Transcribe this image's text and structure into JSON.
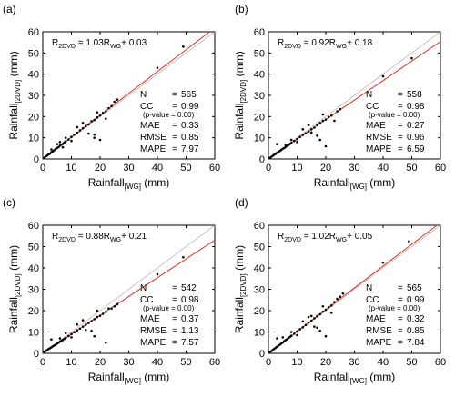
{
  "chart_data": [
    {
      "type": "scatter",
      "panel_label": "(a)",
      "equation": {
        "lhs": "R",
        "lhs_sub": "2DVD",
        "eq": " = 1.03R",
        "rhs_sub": "WG",
        "tail": "+ 0.03"
      },
      "fit": {
        "slope": 1.03,
        "intercept": 0.03
      },
      "stats": [
        {
          "label": "N",
          "value": "565"
        },
        {
          "label": "CC",
          "value": "0.99"
        },
        {
          "label": "",
          "value": "(p-value = 0.00)"
        },
        {
          "label": "MAE",
          "value": "0.33"
        },
        {
          "label": "RMSE",
          "value": "0.85"
        },
        {
          "label": "MAPE",
          "value": "7.97"
        }
      ],
      "xlabel": {
        "main": "Rainfall",
        "sub": "[WG]",
        "unit": " (mm)"
      },
      "ylabel": {
        "main": "Rainfall",
        "sub": "[2DVD]",
        "unit": " (mm)"
      },
      "xlim": [
        0,
        60
      ],
      "ylim": [
        0,
        60
      ],
      "xticks": [
        "0",
        "10",
        "20",
        "30",
        "40",
        "50",
        "60"
      ],
      "yticks": [
        "0",
        "10",
        "20",
        "30",
        "40",
        "50",
        "60"
      ],
      "points": [
        [
          0.5,
          0.5
        ],
        [
          1,
          1.1
        ],
        [
          1.5,
          1.6
        ],
        [
          2,
          2.1
        ],
        [
          2.5,
          2.5
        ],
        [
          3,
          3.2
        ],
        [
          3.5,
          3.6
        ],
        [
          4,
          4.1
        ],
        [
          4.5,
          4.7
        ],
        [
          5,
          5.2
        ],
        [
          5.5,
          5.6
        ],
        [
          6,
          6.3
        ],
        [
          6.5,
          6.7
        ],
        [
          7,
          7.1
        ],
        [
          7.5,
          7.8
        ],
        [
          8,
          8.3
        ],
        [
          9,
          9.2
        ],
        [
          10,
          10.4
        ],
        [
          11,
          11.5
        ],
        [
          12,
          12.3
        ],
        [
          13,
          13.5
        ],
        [
          14,
          14.5
        ],
        [
          15,
          15.6
        ],
        [
          16,
          16.3
        ],
        [
          17,
          17.8
        ],
        [
          18,
          18.4
        ],
        [
          19,
          19.6
        ],
        [
          20,
          20.5
        ],
        [
          21,
          21.8
        ],
        [
          22,
          22.5
        ],
        [
          23,
          24
        ],
        [
          24,
          25
        ],
        [
          25,
          27
        ],
        [
          26,
          28
        ],
        [
          18,
          10
        ],
        [
          18,
          11.5
        ],
        [
          20,
          9
        ],
        [
          16,
          12
        ],
        [
          40,
          43
        ],
        [
          49,
          53
        ],
        [
          3,
          4.5
        ],
        [
          5,
          7
        ],
        [
          8,
          10
        ],
        [
          12,
          15
        ],
        [
          14,
          17
        ],
        [
          22,
          19
        ],
        [
          19,
          22
        ],
        [
          10,
          8.5
        ],
        [
          7,
          5.5
        ],
        [
          6,
          8
        ]
      ],
      "colors": {
        "points": "#000000",
        "fit_line": "#e03020",
        "ref_line": "#b8b8b8"
      }
    },
    {
      "type": "scatter",
      "panel_label": "(b)",
      "equation": {
        "lhs": "R",
        "lhs_sub": "2DVD",
        "eq": " = 0.92R",
        "rhs_sub": "WG",
        "tail": "+ 0.18"
      },
      "fit": {
        "slope": 0.92,
        "intercept": 0.18
      },
      "stats": [
        {
          "label": "N",
          "value": "558"
        },
        {
          "label": "CC",
          "value": "0.98"
        },
        {
          "label": "",
          "value": "(p-value = 0.00)"
        },
        {
          "label": "MAE",
          "value": "0.27"
        },
        {
          "label": "RMSE",
          "value": "0.96"
        },
        {
          "label": "MAPE",
          "value": "6.59"
        }
      ],
      "xlabel": {
        "main": "Rainfall",
        "sub": "[WG]",
        "unit": " (mm)"
      },
      "ylabel": {
        "main": "Rainfall",
        "sub": "[2DVD]",
        "unit": " (mm)"
      },
      "xlim": [
        0,
        60
      ],
      "ylim": [
        0,
        60
      ],
      "xticks": [
        "0",
        "10",
        "20",
        "30",
        "40",
        "50",
        "60"
      ],
      "yticks": [
        "0",
        "10",
        "20",
        "30",
        "40",
        "50",
        "60"
      ],
      "points": [
        [
          0.5,
          0.5
        ],
        [
          1,
          1
        ],
        [
          1.5,
          1.5
        ],
        [
          2,
          2
        ],
        [
          2.5,
          2.4
        ],
        [
          3,
          2.9
        ],
        [
          3.5,
          3.4
        ],
        [
          4,
          3.8
        ],
        [
          4.5,
          4.3
        ],
        [
          5,
          4.8
        ],
        [
          5.5,
          5.2
        ],
        [
          6,
          5.7
        ],
        [
          6.5,
          6.2
        ],
        [
          7,
          6.6
        ],
        [
          7.5,
          7.1
        ],
        [
          8,
          7.6
        ],
        [
          9,
          8.5
        ],
        [
          10,
          9.4
        ],
        [
          11,
          10.4
        ],
        [
          12,
          11.3
        ],
        [
          13,
          12.1
        ],
        [
          14,
          13
        ],
        [
          15,
          14
        ],
        [
          16,
          14.8
        ],
        [
          17,
          16
        ],
        [
          18,
          17
        ],
        [
          19,
          18
        ],
        [
          20,
          18.6
        ],
        [
          21,
          19.8
        ],
        [
          22,
          20.5
        ],
        [
          24,
          22.5
        ],
        [
          25,
          23.5
        ],
        [
          18,
          9
        ],
        [
          20,
          6
        ],
        [
          17,
          11
        ],
        [
          15,
          12.5
        ],
        [
          40,
          39
        ],
        [
          50,
          47.5
        ],
        [
          3,
          7
        ],
        [
          12,
          14
        ],
        [
          14,
          16
        ],
        [
          19,
          21
        ],
        [
          10,
          8
        ],
        [
          6,
          6.5
        ],
        [
          8,
          9
        ],
        [
          23,
          18
        ]
      ],
      "colors": {
        "points": "#000000",
        "fit_line": "#e03020",
        "ref_line": "#b8b8b8"
      }
    },
    {
      "type": "scatter",
      "panel_label": "(c)",
      "equation": {
        "lhs": "R",
        "lhs_sub": "2DVD",
        "eq": " = 0.88R",
        "rhs_sub": "WG",
        "tail": "+ 0.21"
      },
      "fit": {
        "slope": 0.88,
        "intercept": 0.21
      },
      "stats": [
        {
          "label": "N",
          "value": "542"
        },
        {
          "label": "CC",
          "value": "0.98"
        },
        {
          "label": "",
          "value": "(p-value = 0.00)"
        },
        {
          "label": "MAE",
          "value": "0.37"
        },
        {
          "label": "RMSE",
          "value": "1.13"
        },
        {
          "label": "MAPE",
          "value": "7.57"
        }
      ],
      "xlabel": {
        "main": "Rainfall",
        "sub": "[WG]",
        "unit": " (mm)"
      },
      "ylabel": {
        "main": "Rainfall",
        "sub": "[2DVD]",
        "unit": " (mm)"
      },
      "xlim": [
        0,
        60
      ],
      "ylim": [
        0,
        60
      ],
      "xticks": [
        "0",
        "10",
        "20",
        "30",
        "40",
        "50",
        "60"
      ],
      "yticks": [
        "0",
        "10",
        "20",
        "30",
        "40",
        "50",
        "60"
      ],
      "points": [
        [
          0.5,
          0.6
        ],
        [
          1,
          1.1
        ],
        [
          1.5,
          1.5
        ],
        [
          2,
          2
        ],
        [
          2.5,
          2.4
        ],
        [
          3,
          2.8
        ],
        [
          3.5,
          3.3
        ],
        [
          4,
          3.7
        ],
        [
          4.5,
          4.1
        ],
        [
          5,
          4.6
        ],
        [
          5.5,
          5
        ],
        [
          6,
          5.5
        ],
        [
          6.5,
          5.9
        ],
        [
          7,
          6.3
        ],
        [
          7.5,
          6.8
        ],
        [
          8,
          7.2
        ],
        [
          9,
          8.1
        ],
        [
          10,
          9
        ],
        [
          11,
          9.9
        ],
        [
          12,
          10.8
        ],
        [
          13,
          11.6
        ],
        [
          14,
          12.5
        ],
        [
          15,
          13.4
        ],
        [
          16,
          14.2
        ],
        [
          17,
          15.1
        ],
        [
          18,
          16
        ],
        [
          19,
          17
        ],
        [
          20,
          17.6
        ],
        [
          21,
          18.5
        ],
        [
          22,
          19.4
        ],
        [
          24,
          21
        ],
        [
          25,
          22
        ],
        [
          26,
          23
        ],
        [
          18,
          8
        ],
        [
          22,
          5
        ],
        [
          17,
          10.5
        ],
        [
          15,
          11
        ],
        [
          40,
          37
        ],
        [
          49,
          45
        ],
        [
          3,
          6.5
        ],
        [
          12,
          13.5
        ],
        [
          14,
          15.5
        ],
        [
          19,
          20
        ],
        [
          10,
          7.5
        ],
        [
          6,
          7
        ],
        [
          8,
          9.5
        ],
        [
          23,
          21
        ]
      ],
      "colors": {
        "points": "#000000",
        "fit_line": "#e03020",
        "ref_line": "#b8b8b8"
      }
    },
    {
      "type": "scatter",
      "panel_label": "(d)",
      "equation": {
        "lhs": "R",
        "lhs_sub": "2DVD",
        "eq": " = 1.02R",
        "rhs_sub": "WG",
        "tail": "+ 0.05"
      },
      "fit": {
        "slope": 1.02,
        "intercept": 0.05
      },
      "stats": [
        {
          "label": "N",
          "value": "565"
        },
        {
          "label": "CC",
          "value": "0.99"
        },
        {
          "label": "",
          "value": "(p-value = 0.00)"
        },
        {
          "label": "MAE",
          "value": "0.32"
        },
        {
          "label": "RMSE",
          "value": "0.85"
        },
        {
          "label": "MAPE",
          "value": "7.84"
        }
      ],
      "xlabel": {
        "main": "Rainfall",
        "sub": "[WG]",
        "unit": " (mm)"
      },
      "ylabel": {
        "main": "Rainfall",
        "sub": "[2DVD]",
        "unit": " (mm)"
      },
      "xlim": [
        0,
        60
      ],
      "ylim": [
        0,
        60
      ],
      "xticks": [
        "0",
        "10",
        "20",
        "30",
        "40",
        "50",
        "60"
      ],
      "yticks": [
        "0",
        "10",
        "20",
        "30",
        "40",
        "50",
        "60"
      ],
      "points": [
        [
          0.5,
          0.5
        ],
        [
          1,
          1
        ],
        [
          1.5,
          1.6
        ],
        [
          2,
          2.1
        ],
        [
          2.5,
          2.6
        ],
        [
          3,
          3.1
        ],
        [
          3.5,
          3.6
        ],
        [
          4,
          4.1
        ],
        [
          4.5,
          4.6
        ],
        [
          5,
          5.1
        ],
        [
          5.5,
          5.7
        ],
        [
          6,
          6.2
        ],
        [
          6.5,
          6.6
        ],
        [
          7,
          7.2
        ],
        [
          7.5,
          7.7
        ],
        [
          8,
          8.2
        ],
        [
          9,
          9.2
        ],
        [
          10,
          10.3
        ],
        [
          11,
          11.3
        ],
        [
          12,
          12.2
        ],
        [
          13,
          13.3
        ],
        [
          14,
          14.4
        ],
        [
          15,
          15.3
        ],
        [
          16,
          16.4
        ],
        [
          17,
          17.4
        ],
        [
          18,
          18.3
        ],
        [
          19,
          19.5
        ],
        [
          20,
          20.4
        ],
        [
          21,
          21.6
        ],
        [
          22,
          22.4
        ],
        [
          23,
          24
        ],
        [
          24,
          25.5
        ],
        [
          25,
          26.5
        ],
        [
          26,
          28
        ],
        [
          18,
          10.5
        ],
        [
          20,
          8
        ],
        [
          17,
          12
        ],
        [
          16,
          12.5
        ],
        [
          40,
          42.5
        ],
        [
          49,
          52.5
        ],
        [
          3,
          7
        ],
        [
          5,
          7.5
        ],
        [
          12,
          15
        ],
        [
          14,
          17
        ],
        [
          22,
          19
        ],
        [
          19,
          22
        ],
        [
          10,
          8.5
        ],
        [
          8,
          10
        ],
        [
          15,
          17.5
        ]
      ],
      "colors": {
        "points": "#000000",
        "fit_line": "#e03020",
        "ref_line": "#b8b8b8"
      }
    }
  ]
}
